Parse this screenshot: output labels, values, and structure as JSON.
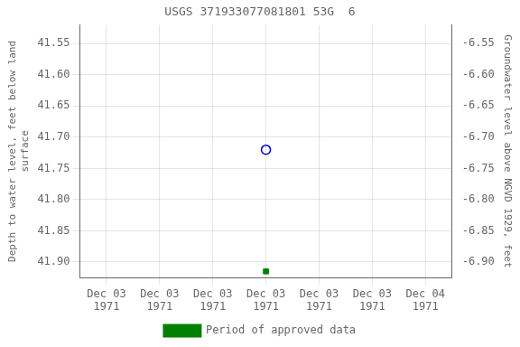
{
  "chart_data": {
    "type": "scatter",
    "title": "USGS 371933077081801 53G  6",
    "y_label": "Depth to water level, feet below land\nsurface",
    "y2_label": "Groundwater level above NGVD 1929, feet",
    "categories": [
      "Dec 03\n1971",
      "Dec 03\n1971",
      "Dec 03\n1971",
      "Dec 03\n1971",
      "Dec 03\n1971",
      "Dec 03\n1971",
      "Dec 04\n1971"
    ],
    "series": [
      {
        "color": "#0000cc",
        "marker": "open_circle",
        "values": [
          null,
          null,
          null,
          41.72,
          null,
          null,
          null
        ]
      },
      {
        "name": "Period of approved data",
        "color": "#008000",
        "marker": "square",
        "values": [
          null,
          null,
          null,
          41.915,
          null,
          null,
          null
        ]
      }
    ],
    "ylim": [
      41.925,
      41.52
    ],
    "yticks": [
      41.55,
      {
        "value": 41.6,
        "label": "41.60"
      },
      41.65,
      {
        "value": 41.7,
        "label": "41.70"
      },
      41.75,
      {
        "value": 41.8,
        "label": "41.80"
      },
      41.85,
      {
        "value": 41.9,
        "label": "41.90"
      }
    ],
    "y2lim": [
      -6.925,
      -6.52
    ],
    "y2ticks": [
      -6.55,
      {
        "value": -6.6,
        "label": "-6.60"
      },
      -6.65,
      {
        "value": -6.7,
        "label": "-6.70"
      },
      -6.75,
      {
        "value": -6.8,
        "label": "-6.80"
      },
      -6.85,
      {
        "value": -6.9,
        "label": "-6.90"
      }
    ],
    "grid": true,
    "legend": "bottom"
  }
}
